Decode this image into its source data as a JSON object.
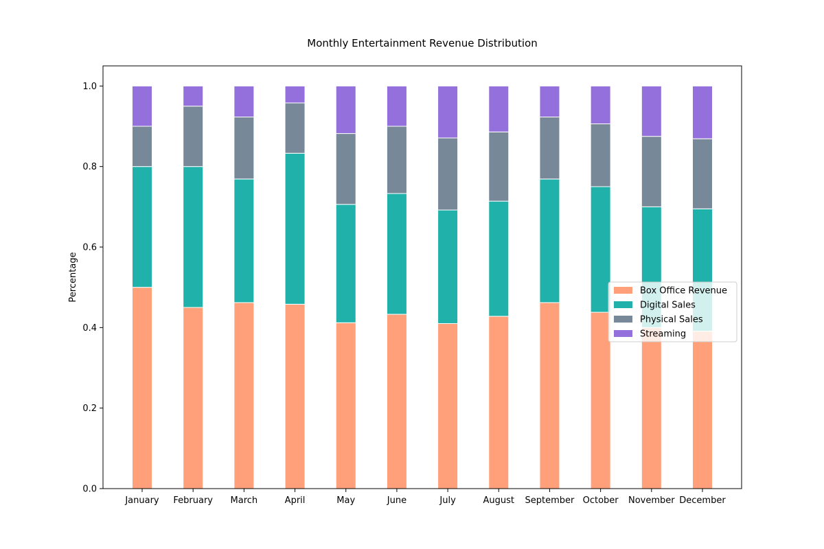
{
  "chart_data": {
    "type": "bar",
    "stacked": true,
    "title": "Monthly Entertainment Revenue Distribution",
    "xlabel": "",
    "ylabel": "Percentage",
    "ylim": [
      0,
      1.05
    ],
    "yticks": [
      "0.0",
      "0.2",
      "0.4",
      "0.6",
      "0.8",
      "1.0"
    ],
    "grid": false,
    "legend_position": "center-right",
    "categories": [
      "January",
      "February",
      "March",
      "April",
      "May",
      "June",
      "July",
      "August",
      "September",
      "October",
      "November",
      "December"
    ],
    "series": [
      {
        "name": "Box Office Revenue",
        "color": "#FFA07A",
        "values": [
          0.5,
          0.45,
          0.462,
          0.458,
          0.412,
          0.433,
          0.41,
          0.428,
          0.462,
          0.438,
          0.4,
          0.391
        ]
      },
      {
        "name": "Digital Sales",
        "color": "#20B2AA",
        "values": [
          0.3,
          0.35,
          0.307,
          0.375,
          0.294,
          0.3,
          0.282,
          0.286,
          0.307,
          0.312,
          0.3,
          0.304
        ]
      },
      {
        "name": "Physical Sales",
        "color": "#778899",
        "values": [
          0.1,
          0.15,
          0.154,
          0.125,
          0.176,
          0.167,
          0.179,
          0.172,
          0.154,
          0.156,
          0.175,
          0.174
        ]
      },
      {
        "name": "Streaming",
        "color": "#9370DB",
        "values": [
          0.1,
          0.05,
          0.077,
          0.042,
          0.118,
          0.1,
          0.129,
          0.114,
          0.077,
          0.094,
          0.125,
          0.131
        ]
      }
    ]
  }
}
